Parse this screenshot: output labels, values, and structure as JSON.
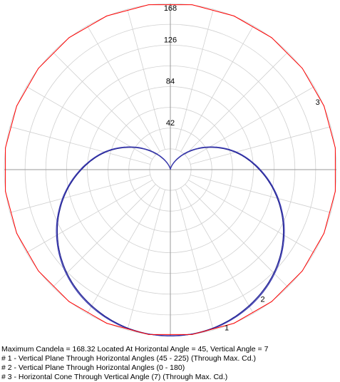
{
  "chart_data": {
    "type": "polar",
    "title": "",
    "radial_ticks": [
      42,
      84,
      126,
      168
    ],
    "rmax": 168,
    "angular_grid_step_deg": 15,
    "grid": true,
    "series": [
      {
        "label": "1",
        "color": "#1f1f8f",
        "angles_deg": [
          0,
          15,
          30,
          45,
          60,
          75,
          90,
          105,
          120,
          135,
          150,
          165,
          180,
          195,
          210,
          225,
          240,
          255,
          270,
          285,
          300,
          315,
          330,
          345
        ],
        "values": [
          168.3,
          166.0,
          159.0,
          148.0,
          132.0,
          112.0,
          90.0,
          68.0,
          45.0,
          25.0,
          10.0,
          2.0,
          0.0,
          2.0,
          10.0,
          25.0,
          45.0,
          68.0,
          90.0,
          112.0,
          132.0,
          148.0,
          159.0,
          166.0
        ]
      },
      {
        "label": "2",
        "color": "#3a3ab0",
        "angles_deg": [
          0,
          15,
          30,
          45,
          60,
          75,
          90,
          105,
          120,
          135,
          150,
          165,
          180,
          195,
          210,
          225,
          240,
          255,
          270,
          285,
          300,
          315,
          330,
          345
        ],
        "values": [
          168.0,
          166.5,
          160.0,
          149.0,
          133.0,
          113.0,
          91.0,
          69.0,
          46.0,
          26.0,
          11.0,
          2.5,
          0.0,
          2.5,
          11.0,
          26.0,
          46.0,
          69.0,
          91.0,
          113.0,
          133.0,
          149.0,
          160.0,
          166.5
        ]
      },
      {
        "label": "3",
        "color": "#ff0000",
        "angles_deg": [
          0,
          15,
          30,
          45,
          60,
          75,
          90,
          105,
          120,
          135,
          150,
          165,
          180,
          195,
          210,
          225,
          240,
          255,
          270,
          285,
          300,
          315,
          330,
          345
        ],
        "values": [
          168.3,
          168.3,
          168.3,
          168.3,
          168.3,
          168.3,
          168.3,
          168.3,
          168.3,
          168.3,
          168.3,
          168.3,
          168.3,
          168.3,
          168.3,
          168.3,
          168.3,
          168.3,
          168.3,
          168.3,
          168.3,
          168.3,
          168.3,
          168.3
        ]
      }
    ]
  },
  "caption": {
    "line1": "Maximum Candela = 168.32   Located At Horizontal Angle = 45, Vertical Angle = 7",
    "line2": "# 1 - Vertical Plane Through Horizontal Angles (45 - 225) (Through Max. Cd.)",
    "line3": "# 2 - Vertical Plane Through Horizontal Angles (0 - 180)",
    "line4": "# 3 - Horizontal Cone Through Vertical Angle (7) (Through Max. Cd.)"
  }
}
